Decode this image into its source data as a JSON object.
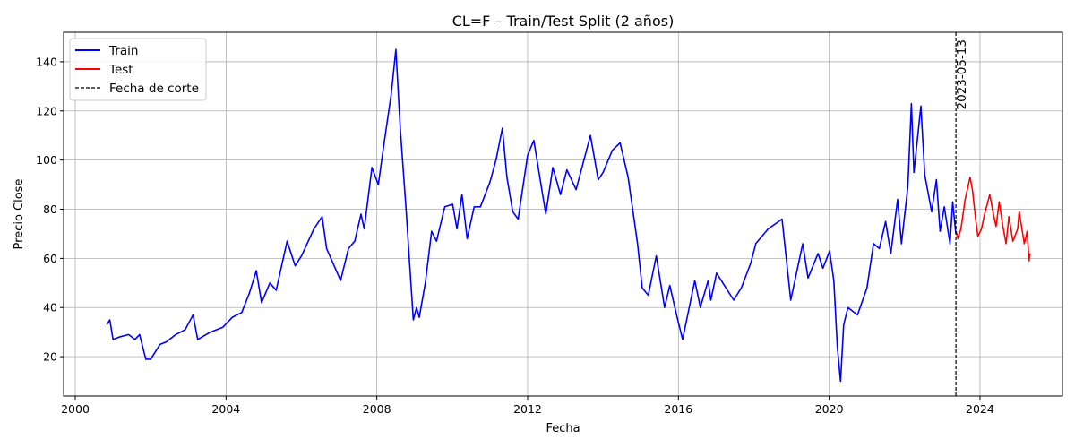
{
  "chart_data": {
    "type": "line",
    "title": "CL=F – Train/Test Split (2 años)",
    "xlabel": "Fecha",
    "ylabel": "Precio Close",
    "xlim": [
      "1999-09-10",
      "2026-03-10"
    ],
    "ylim": [
      4,
      152
    ],
    "x_ticks": [
      "2000",
      "2004",
      "2008",
      "2012",
      "2016",
      "2020",
      "2024"
    ],
    "y_ticks": [
      20,
      40,
      60,
      80,
      100,
      120,
      140
    ],
    "grid": true,
    "legend_position": "top-left",
    "cutoff": {
      "date": "2023-05-13",
      "label": "2023-05-13",
      "legend": "Fecha de corte",
      "color": "#000000"
    },
    "series": [
      {
        "name": "Train",
        "color": "#0000ff",
        "points": [
          [
            "2000-11-01",
            33
          ],
          [
            "2000-12-01",
            35
          ],
          [
            "2001-01-01",
            27
          ],
          [
            "2001-03-01",
            28
          ],
          [
            "2001-06-01",
            29
          ],
          [
            "2001-08-01",
            27
          ],
          [
            "2001-09-15",
            29
          ],
          [
            "2001-11-15",
            19
          ],
          [
            "2002-01-01",
            19
          ],
          [
            "2002-04-01",
            25
          ],
          [
            "2002-06-01",
            26
          ],
          [
            "2002-09-01",
            29
          ],
          [
            "2002-12-01",
            31
          ],
          [
            "2003-02-15",
            37
          ],
          [
            "2003-04-01",
            27
          ],
          [
            "2003-08-01",
            30
          ],
          [
            "2003-12-01",
            32
          ],
          [
            "2004-03-01",
            36
          ],
          [
            "2004-06-01",
            38
          ],
          [
            "2004-08-15",
            46
          ],
          [
            "2004-10-20",
            55
          ],
          [
            "2004-12-10",
            42
          ],
          [
            "2005-03-01",
            50
          ],
          [
            "2005-05-01",
            47
          ],
          [
            "2005-08-15",
            67
          ],
          [
            "2005-11-01",
            57
          ],
          [
            "2006-01-01",
            61
          ],
          [
            "2006-05-01",
            72
          ],
          [
            "2006-07-20",
            77
          ],
          [
            "2006-09-01",
            64
          ],
          [
            "2007-01-15",
            51
          ],
          [
            "2007-04-01",
            64
          ],
          [
            "2007-06-01",
            67
          ],
          [
            "2007-08-01",
            78
          ],
          [
            "2007-09-01",
            72
          ],
          [
            "2007-11-15",
            97
          ],
          [
            "2008-01-15",
            90
          ],
          [
            "2008-03-15",
            108
          ],
          [
            "2008-05-20",
            127
          ],
          [
            "2008-07-03",
            145
          ],
          [
            "2008-08-15",
            113
          ],
          [
            "2008-10-10",
            80
          ],
          [
            "2008-12-20",
            35
          ],
          [
            "2009-01-20",
            40
          ],
          [
            "2009-02-15",
            36
          ],
          [
            "2009-04-15",
            50
          ],
          [
            "2009-06-15",
            71
          ],
          [
            "2009-08-01",
            67
          ],
          [
            "2009-10-20",
            81
          ],
          [
            "2010-01-05",
            82
          ],
          [
            "2010-02-15",
            72
          ],
          [
            "2010-04-05",
            86
          ],
          [
            "2010-05-25",
            68
          ],
          [
            "2010-08-01",
            81
          ],
          [
            "2010-10-01",
            81
          ],
          [
            "2011-01-01",
            91
          ],
          [
            "2011-03-01",
            100
          ],
          [
            "2011-05-01",
            113
          ],
          [
            "2011-06-15",
            93
          ],
          [
            "2011-08-10",
            79
          ],
          [
            "2011-10-01",
            76
          ],
          [
            "2012-01-01",
            102
          ],
          [
            "2012-03-01",
            108
          ],
          [
            "2012-06-25",
            78
          ],
          [
            "2012-09-01",
            97
          ],
          [
            "2012-11-15",
            86
          ],
          [
            "2013-01-15",
            96
          ],
          [
            "2013-04-15",
            88
          ],
          [
            "2013-09-01",
            110
          ],
          [
            "2013-11-15",
            92
          ],
          [
            "2014-01-01",
            95
          ],
          [
            "2014-04-01",
            104
          ],
          [
            "2014-06-15",
            107
          ],
          [
            "2014-09-01",
            93
          ],
          [
            "2014-12-01",
            66
          ],
          [
            "2015-01-15",
            48
          ],
          [
            "2015-03-15",
            45
          ],
          [
            "2015-06-01",
            61
          ],
          [
            "2015-08-20",
            40
          ],
          [
            "2015-10-10",
            49
          ],
          [
            "2015-12-20",
            36
          ],
          [
            "2016-02-11",
            27
          ],
          [
            "2016-06-08",
            51
          ],
          [
            "2016-08-01",
            40
          ],
          [
            "2016-10-15",
            51
          ],
          [
            "2016-11-10",
            43
          ],
          [
            "2017-01-05",
            54
          ],
          [
            "2017-06-20",
            43
          ],
          [
            "2017-09-01",
            48
          ],
          [
            "2017-12-01",
            58
          ],
          [
            "2018-01-20",
            66
          ],
          [
            "2018-05-20",
            72
          ],
          [
            "2018-10-01",
            76
          ],
          [
            "2018-12-24",
            43
          ],
          [
            "2019-04-20",
            66
          ],
          [
            "2019-06-10",
            52
          ],
          [
            "2019-09-15",
            62
          ],
          [
            "2019-11-01",
            56
          ],
          [
            "2020-01-05",
            63
          ],
          [
            "2020-02-15",
            51
          ],
          [
            "2020-03-20",
            24
          ],
          [
            "2020-04-20",
            10
          ],
          [
            "2020-05-20",
            33
          ],
          [
            "2020-07-01",
            40
          ],
          [
            "2020-10-01",
            37
          ],
          [
            "2021-01-01",
            48
          ],
          [
            "2021-03-05",
            66
          ],
          [
            "2021-05-01",
            64
          ],
          [
            "2021-07-01",
            75
          ],
          [
            "2021-08-20",
            62
          ],
          [
            "2021-10-25",
            84
          ],
          [
            "2021-12-01",
            66
          ],
          [
            "2022-02-01",
            89
          ],
          [
            "2022-03-08",
            123
          ],
          [
            "2022-04-01",
            95
          ],
          [
            "2022-06-08",
            122
          ],
          [
            "2022-07-15",
            94
          ],
          [
            "2022-09-20",
            79
          ],
          [
            "2022-11-05",
            92
          ],
          [
            "2022-12-10",
            71
          ],
          [
            "2023-01-20",
            81
          ],
          [
            "2023-03-17",
            66
          ],
          [
            "2023-04-12",
            83
          ],
          [
            "2023-05-12",
            70
          ]
        ]
      },
      {
        "name": "Test",
        "color": "#ff0000",
        "points": [
          [
            "2023-05-15",
            71
          ],
          [
            "2023-06-01",
            68
          ],
          [
            "2023-07-01",
            72
          ],
          [
            "2023-08-10",
            84
          ],
          [
            "2023-09-27",
            93
          ],
          [
            "2023-10-20",
            88
          ],
          [
            "2023-11-20",
            76
          ],
          [
            "2023-12-12",
            69
          ],
          [
            "2024-01-15",
            72
          ],
          [
            "2024-02-15",
            78
          ],
          [
            "2024-04-05",
            86
          ],
          [
            "2024-05-10",
            78
          ],
          [
            "2024-06-05",
            73
          ],
          [
            "2024-07-05",
            83
          ],
          [
            "2024-08-10",
            73
          ],
          [
            "2024-09-10",
            66
          ],
          [
            "2024-10-07",
            77
          ],
          [
            "2024-11-15",
            67
          ],
          [
            "2024-12-31",
            72
          ],
          [
            "2025-01-15",
            79
          ],
          [
            "2025-03-05",
            66
          ],
          [
            "2025-04-02",
            71
          ],
          [
            "2025-04-20",
            59
          ],
          [
            "2025-05-01",
            62
          ]
        ]
      }
    ]
  }
}
